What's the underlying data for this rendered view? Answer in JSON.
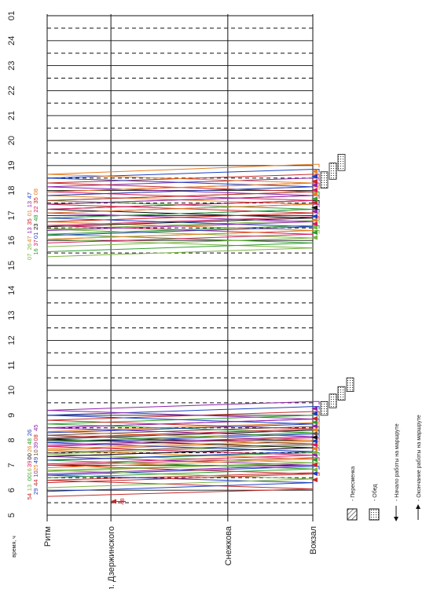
{
  "chart_data": {
    "type": "line",
    "axis_label": "время, ч",
    "time_ticks": [
      "5",
      "6",
      "7",
      "8",
      "9",
      "10",
      "11",
      "12",
      "13",
      "14",
      "15",
      "16",
      "17",
      "18",
      "19",
      "20",
      "21",
      "22",
      "23",
      "24",
      "01"
    ],
    "stops": [
      "Ритм",
      "Ул. Дзержинского",
      "Снежкова",
      "Вокзал"
    ],
    "stop_positions": [
      0,
      0.24,
      0.68,
      1.0
    ],
    "grid": true,
    "legend": [
      {
        "symbol": "hatched-box",
        "label": "- Пересменка"
      },
      {
        "symbol": "dotted-box",
        "label": "- Обед"
      },
      {
        "symbol": "arrow-left",
        "label": "- Начало работы на маршруте"
      },
      {
        "symbol": "arrow-right",
        "label": "- Окончание работы на маршруте"
      }
    ],
    "colors": [
      "#d81b60",
      "#1e3fbf",
      "#2e9e2e",
      "#e67e22",
      "#8e24aa",
      "#c62828",
      "#111111",
      "#7cb342",
      "#00838f",
      "#6d4c41"
    ],
    "series": [
      {
        "name": "54",
        "color": "#c62828",
        "start": 5.75,
        "trips": [
          [
            5.75,
            6.05
          ],
          [
            6.05,
            6.4
          ],
          [
            6.4,
            6.7
          ]
        ],
        "end": "start"
      },
      {
        "name": "29",
        "color": "#1e3fbf",
        "start": 5.95,
        "trips": [
          [
            5.95,
            6.3
          ],
          [
            6.3,
            6.6
          ],
          [
            6.6,
            6.95
          ]
        ],
        "end": "start"
      },
      {
        "name": "13",
        "color": "#7cb342",
        "start": 6.1,
        "trips": [
          [
            6.1,
            6.45
          ],
          [
            6.45,
            6.8
          ],
          [
            6.8,
            7.1
          ]
        ],
        "end": "start"
      },
      {
        "name": "44",
        "color": "#c62828",
        "start": 6.3,
        "trips": [
          [
            6.3,
            6.65
          ],
          [
            6.65,
            7.0
          ],
          [
            7.0,
            7.3
          ]
        ],
        "end": "start"
      },
      {
        "name": "00",
        "color": "#2e9e2e",
        "start": 6.5,
        "trips": [
          [
            6.5,
            6.85
          ],
          [
            6.85,
            7.2
          ],
          [
            7.2,
            7.5
          ]
        ],
        "end": "start"
      },
      {
        "name": "10",
        "color": "#8e24aa",
        "start": 6.65,
        "trips": [
          [
            6.65,
            7.0
          ],
          [
            7.0,
            7.35
          ],
          [
            7.35,
            7.7
          ]
        ],
        "end": "start"
      },
      {
        "name": "16",
        "color": "#7cb342",
        "start": 6.75,
        "trips": [
          [
            6.75,
            7.1
          ],
          [
            7.1,
            7.45
          ],
          [
            7.45,
            7.8
          ]
        ],
        "end": "start"
      },
      {
        "name": "25",
        "color": "#e67e22",
        "start": 6.9,
        "trips": [
          [
            6.9,
            7.25
          ],
          [
            7.25,
            7.6
          ],
          [
            7.6,
            7.95
          ]
        ],
        "end": "start"
      },
      {
        "name": "39",
        "color": "#d81b60",
        "start": 7.05,
        "trips": [
          [
            7.05,
            7.4
          ],
          [
            7.4,
            7.75
          ],
          [
            7.75,
            8.1
          ]
        ],
        "end": "start"
      },
      {
        "name": "49",
        "color": "#1e3fbf",
        "start": 7.2,
        "trips": [
          [
            7.2,
            7.55
          ],
          [
            7.55,
            7.9
          ],
          [
            7.9,
            8.25
          ]
        ],
        "end": "start"
      },
      {
        "name": "00",
        "color": "#111111",
        "start": 7.35,
        "trips": [
          [
            7.35,
            7.7
          ],
          [
            7.7,
            8.05
          ],
          [
            8.05,
            8.4
          ]
        ],
        "end": "start"
      },
      {
        "name": "10",
        "color": "#6d4c41",
        "start": 7.5,
        "trips": [
          [
            7.5,
            7.85
          ],
          [
            7.85,
            8.2
          ],
          [
            8.2,
            8.55
          ]
        ],
        "end": "start"
      },
      {
        "name": "26",
        "color": "#e67e22",
        "start": 7.65,
        "trips": [
          [
            7.65,
            8.0
          ],
          [
            8.0,
            8.35
          ],
          [
            8.35,
            8.7
          ]
        ],
        "end": "start"
      },
      {
        "name": "39",
        "color": "#8e24aa",
        "start": 7.8,
        "trips": [
          [
            7.8,
            8.15
          ],
          [
            8.15,
            8.5
          ],
          [
            8.5,
            8.85
          ]
        ],
        "end": "start"
      },
      {
        "name": "48",
        "color": "#2e9e2e",
        "start": 7.95,
        "trips": [
          [
            7.95,
            8.3
          ],
          [
            8.3,
            8.65
          ],
          [
            8.65,
            9.0
          ]
        ],
        "end": "start"
      },
      {
        "name": "08",
        "color": "#c62828",
        "start": 8.1,
        "trips": [
          [
            8.1,
            8.45
          ],
          [
            8.45,
            8.8
          ],
          [
            8.8,
            9.15
          ]
        ],
        "end": "start"
      },
      {
        "name": "26",
        "color": "#1e3fbf",
        "start": 8.3,
        "trips": [
          [
            8.3,
            8.65
          ],
          [
            8.65,
            9.0
          ],
          [
            9.0,
            9.35
          ]
        ],
        "end": "start"
      },
      {
        "name": "45",
        "color": "#8e24aa",
        "start": 8.5,
        "trips": [
          [
            8.5,
            8.85
          ],
          [
            8.85,
            9.2
          ],
          [
            9.2,
            9.55
          ]
        ],
        "end": "start"
      },
      {
        "name": "07",
        "color": "#7cb342",
        "start": 15.35,
        "trips": [
          [
            15.35,
            15.7
          ],
          [
            15.7,
            16.05
          ],
          [
            16.05,
            16.4
          ]
        ],
        "end": "start"
      },
      {
        "name": "16",
        "color": "#2e9e2e",
        "start": 15.55,
        "trips": [
          [
            15.55,
            15.9
          ],
          [
            15.9,
            16.25
          ],
          [
            16.25,
            16.6
          ]
        ],
        "end": "start"
      },
      {
        "name": "26",
        "color": "#7cb342",
        "start": 15.75,
        "trips": [
          [
            15.75,
            16.1
          ],
          [
            16.1,
            16.45
          ],
          [
            16.45,
            16.8
          ]
        ],
        "end": "start"
      },
      {
        "name": "37",
        "color": "#d81b60",
        "start": 15.9,
        "trips": [
          [
            15.9,
            16.25
          ],
          [
            16.25,
            16.6
          ],
          [
            16.6,
            16.95
          ]
        ],
        "end": "start"
      },
      {
        "name": "47",
        "color": "#e67e22",
        "start": 16.05,
        "trips": [
          [
            16.05,
            16.4
          ],
          [
            16.4,
            16.75
          ],
          [
            16.75,
            17.1
          ]
        ],
        "end": "start"
      },
      {
        "name": "01",
        "color": "#1e3fbf",
        "start": 16.2,
        "trips": [
          [
            16.2,
            16.55
          ],
          [
            16.55,
            16.9
          ],
          [
            16.9,
            17.25
          ]
        ],
        "end": "start"
      },
      {
        "name": "13",
        "color": "#8e24aa",
        "start": 16.4,
        "trips": [
          [
            16.4,
            16.75
          ],
          [
            16.75,
            17.1
          ],
          [
            17.1,
            17.45
          ]
        ],
        "end": "start"
      },
      {
        "name": "23",
        "color": "#111111",
        "start": 16.55,
        "trips": [
          [
            16.55,
            16.9
          ],
          [
            16.9,
            17.25
          ],
          [
            17.25,
            17.6
          ]
        ],
        "end": "start"
      },
      {
        "name": "35",
        "color": "#c62828",
        "start": 16.75,
        "trips": [
          [
            16.75,
            17.1
          ],
          [
            17.1,
            17.45
          ],
          [
            17.45,
            17.8
          ]
        ],
        "end": "start"
      },
      {
        "name": "48",
        "color": "#2e9e2e",
        "start": 16.9,
        "trips": [
          [
            16.9,
            17.25
          ],
          [
            17.25,
            17.6
          ],
          [
            17.6,
            17.95
          ]
        ],
        "end": "start"
      },
      {
        "name": "01",
        "color": "#e67e22",
        "start": 17.1,
        "trips": [
          [
            17.1,
            17.45
          ],
          [
            17.45,
            17.8
          ],
          [
            17.8,
            18.15
          ]
        ],
        "end": "start"
      },
      {
        "name": "22",
        "color": "#d81b60",
        "start": 17.25,
        "trips": [
          [
            17.25,
            17.6
          ],
          [
            17.6,
            17.95
          ],
          [
            17.95,
            18.3
          ]
        ],
        "end": "start"
      },
      {
        "name": "13",
        "color": "#8e24aa",
        "start": 17.45,
        "trips": [
          [
            17.45,
            17.8
          ],
          [
            17.8,
            18.15
          ],
          [
            18.15,
            18.5
          ]
        ],
        "end": "start"
      },
      {
        "name": "35",
        "color": "#c62828",
        "start": 17.6,
        "trips": [
          [
            17.6,
            17.95
          ],
          [
            17.95,
            18.3
          ],
          [
            18.3,
            18.65
          ]
        ],
        "end": "start"
      },
      {
        "name": "47",
        "color": "#1e3fbf",
        "start": 17.8,
        "trips": [
          [
            17.8,
            18.15
          ],
          [
            18.15,
            18.5
          ],
          [
            18.5,
            18.85
          ]
        ],
        "end": "start"
      },
      {
        "name": "08",
        "color": "#e67e22",
        "start": 17.95,
        "trips": [
          [
            17.95,
            18.3
          ],
          [
            18.3,
            18.65
          ],
          [
            18.65,
            19.05
          ]
        ],
        "end": "start"
      }
    ],
    "extra_label": {
      "name": "48",
      "color": "#c62828",
      "t": 5.55
    },
    "breaks_morning": [
      {
        "type": "dotted",
        "t": [
          9.0,
          9.55
        ]
      },
      {
        "type": "dotted",
        "t": [
          9.3,
          9.85
        ]
      },
      {
        "type": "dotted",
        "t": [
          9.6,
          10.15
        ]
      },
      {
        "type": "dotted",
        "t": [
          9.95,
          10.5
        ]
      }
    ],
    "breaks_evening": [
      {
        "type": "dotted",
        "t": [
          18.1,
          18.75
        ]
      },
      {
        "type": "dotted",
        "t": [
          18.45,
          19.1
        ]
      },
      {
        "type": "dotted",
        "t": [
          18.8,
          19.45
        ]
      }
    ]
  }
}
